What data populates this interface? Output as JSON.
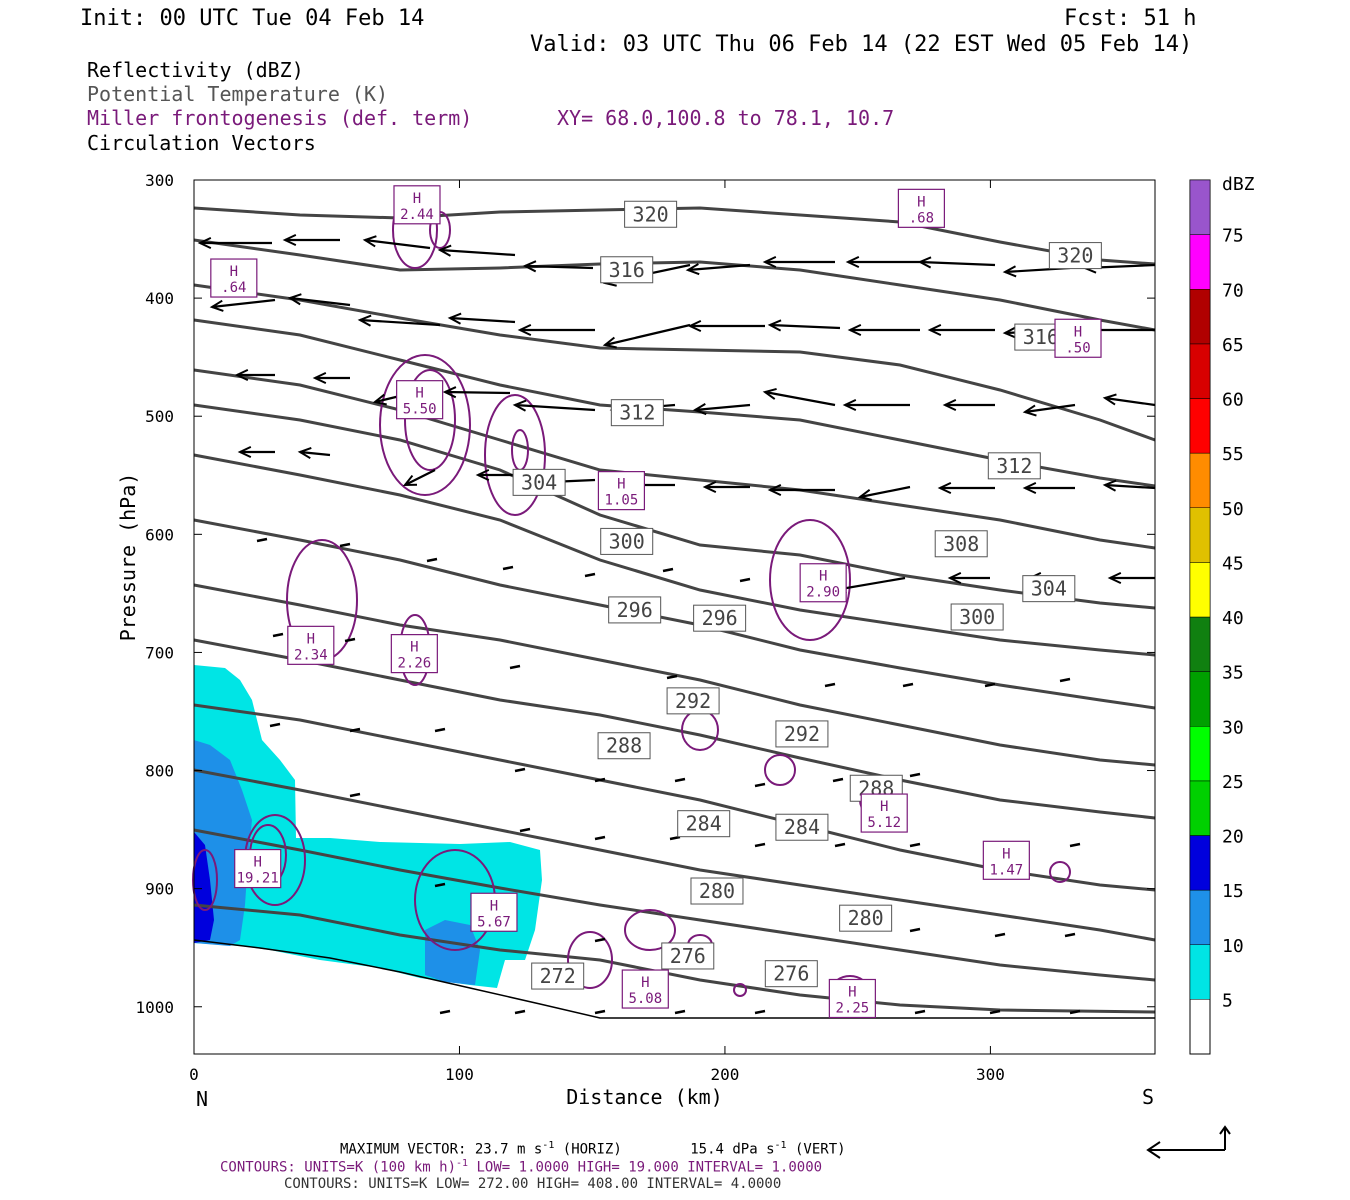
{
  "header": {
    "init": "Init: 00 UTC Tue 04 Feb 14",
    "fcst": "Fcst:   51 h",
    "valid": "Valid: 03 UTC Thu 06 Feb 14 (22 EST Wed 05 Feb 14)"
  },
  "legend": {
    "reflectivity": "Reflectivity (dBZ)",
    "theta": "Potential Temperature (K)",
    "fronto": "Miller frontogenesis (def. term)",
    "xy": "XY=  68.0,100.8 to  78.1, 10.7",
    "vectors": "Circulation Vectors"
  },
  "colors": {
    "theta": "#444444",
    "fronto": "#7a1a7a",
    "refl_5": "#00e5e5",
    "refl_10": "#1e90e8",
    "refl_15": "#0000dd"
  },
  "chart_data": {
    "type": "cross-section",
    "xlabel": "Distance (km)",
    "ylabel": "Pressure (hPa)",
    "xlim": [
      0,
      362
    ],
    "ylim": [
      1040,
      300
    ],
    "x_ticks": [
      "0",
      "100",
      "200",
      "300"
    ],
    "y_ticks": [
      "300",
      "400",
      "500",
      "600",
      "700",
      "800",
      "900",
      "1000"
    ],
    "left_end": "N",
    "right_end": "S",
    "colorbar": {
      "unit": "dBZ",
      "levels": [
        "5",
        "10",
        "15",
        "20",
        "25",
        "30",
        "35",
        "40",
        "45",
        "50",
        "55",
        "60",
        "65",
        "70",
        "75"
      ],
      "colors": [
        "#00e5e5",
        "#1e90e8",
        "#0000dd",
        "#00d000",
        "#00ff00",
        "#00a000",
        "#108010",
        "#ffff00",
        "#e0c000",
        "#ff8c00",
        "#ff0000",
        "#d80000",
        "#b00000",
        "#ff00ff",
        "#9955cc"
      ]
    },
    "theta_labels": [
      {
        "text": "320",
        "x": 172,
        "p": 329
      },
      {
        "text": "320",
        "x": 332,
        "p": 364
      },
      {
        "text": "316",
        "x": 163,
        "p": 376
      },
      {
        "text": "316",
        "x": 319,
        "p": 433
      },
      {
        "text": "312",
        "x": 167,
        "p": 497
      },
      {
        "text": "312",
        "x": 309,
        "p": 542
      },
      {
        "text": "308",
        "x": 289,
        "p": 608
      },
      {
        "text": "304",
        "x": 130,
        "p": 556
      },
      {
        "text": "304",
        "x": 322,
        "p": 646
      },
      {
        "text": "300",
        "x": 163,
        "p": 606
      },
      {
        "text": "300",
        "x": 295,
        "p": 670
      },
      {
        "text": "296",
        "x": 166,
        "p": 664
      },
      {
        "text": "296",
        "x": 198,
        "p": 671
      },
      {
        "text": "292",
        "x": 188,
        "p": 741
      },
      {
        "text": "292",
        "x": 229,
        "p": 769
      },
      {
        "text": "288",
        "x": 162,
        "p": 779
      },
      {
        "text": "288",
        "x": 257,
        "p": 815
      },
      {
        "text": "284",
        "x": 192,
        "p": 845
      },
      {
        "text": "284",
        "x": 229,
        "p": 848
      },
      {
        "text": "280",
        "x": 197,
        "p": 902
      },
      {
        "text": "280",
        "x": 253,
        "p": 925
      },
      {
        "text": "276",
        "x": 186,
        "p": 957
      },
      {
        "text": "276",
        "x": 225,
        "p": 972
      },
      {
        "text": "272",
        "x": 137,
        "p": 974
      }
    ],
    "fronto_maxima": [
      {
        "label": "H",
        "value": "2.44",
        "x": 84,
        "p": 321
      },
      {
        "label": "H",
        "value": ".68",
        "x": 274,
        "p": 324
      },
      {
        "label": "H",
        "value": ".64",
        "x": 15,
        "p": 383
      },
      {
        "label": "H",
        "value": ".50",
        "x": 333,
        "p": 434
      },
      {
        "label": "H",
        "value": "5.50",
        "x": 85,
        "p": 486
      },
      {
        "label": "H",
        "value": "1.05",
        "x": 161,
        "p": 563
      },
      {
        "label": "H",
        "value": "2.90",
        "x": 237,
        "p": 641
      },
      {
        "label": "H",
        "value": "2.34",
        "x": 44,
        "p": 694
      },
      {
        "label": "H",
        "value": "2.26",
        "x": 83,
        "p": 701
      },
      {
        "label": "H",
        "value": "5.12",
        "x": 260,
        "p": 836
      },
      {
        "label": "H",
        "value": "1.47",
        "x": 306,
        "p": 876
      },
      {
        "label": "H",
        "value": "19.21",
        "x": 24,
        "p": 883
      },
      {
        "label": "H",
        "value": "5.67",
        "x": 113,
        "p": 920
      },
      {
        "label": "H",
        "value": "5.08",
        "x": 170,
        "p": 985
      },
      {
        "label": "H",
        "value": "2.25",
        "x": 248,
        "p": 993
      }
    ]
  },
  "footer": {
    "max_vector_label": "MAXIMUM VECTOR:  23.7 m s",
    "max_vector_exp1": "-1",
    "max_vector_horiz": " (HORIZ)",
    "max_vector_vert": "15.4 dPa s",
    "max_vector_exp2": "-1",
    "max_vector_vert_tail": " (VERT)",
    "contours1": "CONTOURS:  UNITS=K (100 km h)",
    "contours1_exp": "-1",
    "contours1_tail": "  LOW=   1.0000       HIGH=  19.000       INTERVAL=    1.0000",
    "contours2": "CONTOURS:  UNITS=K  LOW=  272.00        HIGH=  408.00        INTERVAL=    4.0000"
  }
}
